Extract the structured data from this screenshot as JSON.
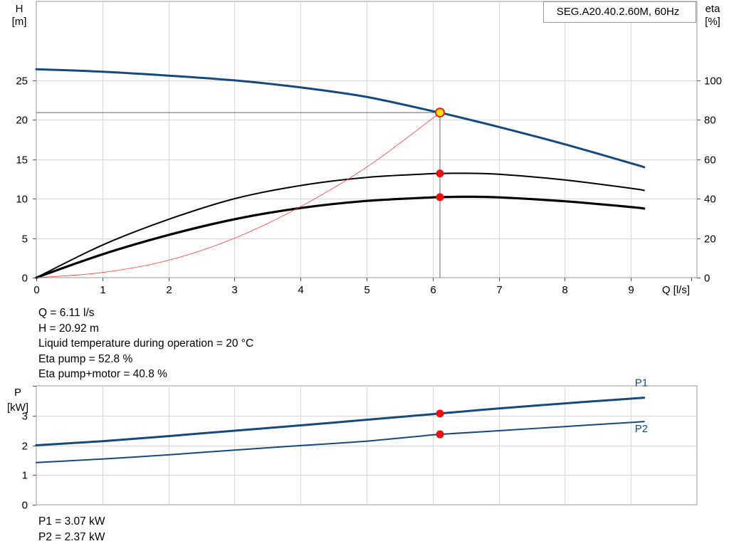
{
  "chart_data": [
    {
      "type": "line",
      "title": "SEG.A20.40.2.60M, 60Hz",
      "xlabel": "Q [l/s]",
      "ylabel": "H",
      "ylabel_unit": "[m]",
      "y2label": "eta",
      "y2label_unit": "[%]",
      "xlim": [
        0,
        10
      ],
      "ylim": [
        0,
        35
      ],
      "y2lim": [
        0,
        140
      ],
      "x_ticks": [
        0,
        1,
        2,
        3,
        4,
        5,
        6,
        7,
        8,
        9
      ],
      "y_ticks": [
        0,
        5,
        10,
        15,
        20,
        25
      ],
      "y2_ticks": [
        0,
        20,
        40,
        60,
        80,
        100
      ],
      "grid": true,
      "operating_point": {
        "q": 6.11,
        "h": 20.92
      },
      "series": [
        {
          "axis": "left",
          "color": "#174a7c",
          "x": [
            0,
            1,
            2,
            3,
            4,
            5,
            6,
            6.11,
            7,
            8,
            9,
            9.2
          ],
          "y": [
            26.4,
            26.1,
            25.6,
            25.0,
            24.1,
            22.9,
            21.1,
            20.92,
            19.1,
            16.9,
            14.5,
            14.0
          ]
        },
        {
          "axis": "right",
          "color": "#000000",
          "x": [
            0,
            1,
            2,
            3,
            4,
            5,
            6,
            6.11,
            6.5,
            7,
            8,
            9,
            9.2
          ],
          "y": [
            0,
            16.5,
            29.5,
            40.0,
            46.7,
            50.8,
            52.7,
            52.8,
            52.9,
            52.4,
            49.5,
            45.3,
            44.2
          ]
        },
        {
          "axis": "right",
          "color": "#000000",
          "x": [
            0,
            1,
            2,
            3,
            4,
            5,
            6,
            6.11,
            6.5,
            7,
            8,
            9,
            9.2
          ],
          "y": [
            0,
            11.8,
            21.6,
            29.6,
            35.3,
            38.9,
            40.7,
            40.8,
            41.0,
            40.7,
            38.7,
            35.8,
            35.0
          ]
        },
        {
          "axis": "left",
          "color": "#ff3a3a",
          "x": [
            0,
            1,
            2,
            3,
            4,
            5,
            6,
            6.11
          ],
          "y": [
            0,
            0.65,
            2.2,
            5.0,
            9.0,
            14.0,
            20.2,
            20.92
          ]
        }
      ],
      "markers": [
        {
          "x": 6.11,
          "y": 20.92,
          "axis": "left",
          "fill": "#ffe000",
          "stroke": "#e8271c"
        },
        {
          "x": 6.11,
          "y": 52.8,
          "axis": "right",
          "fill": "#ee1111",
          "stroke": "#ee1111"
        },
        {
          "x": 6.11,
          "y": 40.8,
          "axis": "right",
          "fill": "#ee1111",
          "stroke": "#ee1111"
        }
      ]
    },
    {
      "type": "line",
      "ylabel": "P",
      "ylabel_unit": "[kW]",
      "xlim": [
        0,
        10
      ],
      "ylim": [
        0,
        4
      ],
      "y_ticks": [
        0,
        1,
        2,
        3
      ],
      "grid": true,
      "series": [
        {
          "name": "P1",
          "color": "#174a7c",
          "x": [
            0,
            1,
            2,
            3,
            4,
            5,
            6,
            6.11,
            7,
            8,
            9,
            9.2
          ],
          "y": [
            2.0,
            2.14,
            2.31,
            2.49,
            2.67,
            2.86,
            3.05,
            3.07,
            3.24,
            3.41,
            3.57,
            3.6
          ]
        },
        {
          "name": "P2",
          "color": "#174a7c",
          "x": [
            0,
            1,
            2,
            3,
            4,
            5,
            6,
            6.11,
            7,
            8,
            9,
            9.2
          ],
          "y": [
            1.42,
            1.54,
            1.68,
            1.84,
            1.99,
            2.14,
            2.35,
            2.37,
            2.49,
            2.63,
            2.77,
            2.8
          ]
        }
      ],
      "markers": [
        {
          "x": 6.11,
          "y": 3.07,
          "fill": "#ee1111"
        },
        {
          "x": 6.11,
          "y": 2.37,
          "fill": "#ee1111"
        }
      ]
    }
  ],
  "info_top": [
    "Q = 6.11 l/s",
    "H = 20.92 m",
    "Liquid temperature during operation = 20 °C",
    "Eta pump = 52.8 %",
    "Eta pump+motor = 40.8 %"
  ],
  "info_bottom": [
    "P1 = 3.07 kW",
    "P2 = 2.37 kW"
  ]
}
